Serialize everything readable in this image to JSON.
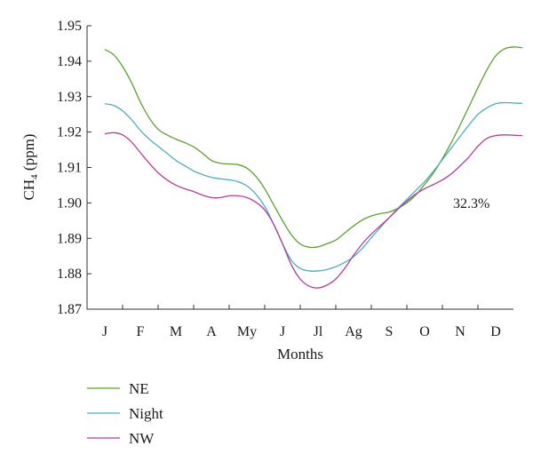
{
  "chart_data": {
    "type": "line",
    "title": "",
    "xlabel": "Months",
    "ylabel_main": "CH",
    "ylabel_sub": "4",
    "ylabel_unit": " (ppm)",
    "categories": [
      "J",
      "F",
      "M",
      "A",
      "My",
      "J",
      "Jl",
      "Ag",
      "S",
      "O",
      "N",
      "D"
    ],
    "ylim": [
      1.87,
      1.95
    ],
    "yticks": [
      "1.87",
      "1.88",
      "1.89",
      "1.90",
      "1.91",
      "1.92",
      "1.93",
      "1.94",
      "1.95"
    ],
    "grid": false,
    "legend_position": "bottom-left",
    "annotation": "32.3%",
    "series": [
      {
        "name": "NE",
        "color": "#5aa02c",
        "x": [
          0.5,
          0.75,
          1,
          1.25,
          1.5,
          1.75,
          2,
          2.25,
          2.5,
          2.75,
          3,
          3.25,
          3.5,
          3.75,
          4,
          4.25,
          4.5,
          4.75,
          5,
          5.25,
          5.5,
          5.75,
          6,
          6.25,
          6.5,
          6.75,
          7,
          7.25,
          7.5,
          7.75,
          8,
          8.25,
          8.5,
          8.75,
          9,
          9.25,
          9.5,
          9.75,
          10,
          10.25,
          10.5,
          10.75,
          11,
          11.25,
          11.5,
          11.75,
          12,
          12.25
        ],
        "values": [
          1.9433,
          1.9418,
          1.9385,
          1.934,
          1.9285,
          1.924,
          1.9208,
          1.9192,
          1.918,
          1.917,
          1.9158,
          1.914,
          1.912,
          1.9112,
          1.911,
          1.9108,
          1.9098,
          1.9075,
          1.904,
          1.8995,
          1.895,
          1.891,
          1.8884,
          1.8875,
          1.8876,
          1.8885,
          1.8895,
          1.8915,
          1.8935,
          1.8952,
          1.8963,
          1.897,
          1.8974,
          1.8985,
          1.9,
          1.9022,
          1.9052,
          1.9085,
          1.9125,
          1.917,
          1.922,
          1.9272,
          1.9325,
          1.9375,
          1.9415,
          1.9435,
          1.944,
          1.9438
        ]
      },
      {
        "name": "Night",
        "color": "#4bb0bd",
        "x": [
          0.5,
          0.75,
          1,
          1.25,
          1.5,
          1.75,
          2,
          2.25,
          2.5,
          2.75,
          3,
          3.25,
          3.5,
          3.75,
          4,
          4.25,
          4.5,
          4.75,
          5,
          5.25,
          5.5,
          5.75,
          6,
          6.25,
          6.5,
          6.75,
          7,
          7.25,
          7.5,
          7.75,
          8,
          8.25,
          8.5,
          8.75,
          9,
          9.25,
          9.5,
          9.75,
          10,
          10.25,
          10.5,
          10.75,
          11,
          11.25,
          11.5,
          11.75,
          12,
          12.25
        ],
        "values": [
          1.928,
          1.9275,
          1.926,
          1.9235,
          1.9205,
          1.918,
          1.916,
          1.914,
          1.912,
          1.9105,
          1.909,
          1.908,
          1.9072,
          1.9068,
          1.9065,
          1.906,
          1.9048,
          1.9025,
          1.899,
          1.894,
          1.8885,
          1.8838,
          1.8815,
          1.8808,
          1.8808,
          1.8812,
          1.882,
          1.8832,
          1.8848,
          1.8872,
          1.8902,
          1.893,
          1.8958,
          1.8985,
          1.901,
          1.9035,
          1.906,
          1.909,
          1.9122,
          1.9155,
          1.9188,
          1.922,
          1.925,
          1.9268,
          1.928,
          1.9283,
          1.9282,
          1.9281
        ]
      },
      {
        "name": "NW",
        "color": "#b23d9e",
        "x": [
          0.5,
          0.75,
          1,
          1.25,
          1.5,
          1.75,
          2,
          2.25,
          2.5,
          2.75,
          3,
          3.25,
          3.5,
          3.75,
          4,
          4.25,
          4.5,
          4.75,
          5,
          5.25,
          5.5,
          5.75,
          6,
          6.25,
          6.5,
          6.75,
          7,
          7.25,
          7.5,
          7.75,
          8,
          8.25,
          8.5,
          8.75,
          9,
          9.25,
          9.5,
          9.75,
          10,
          10.25,
          10.5,
          10.75,
          11,
          11.25,
          11.5,
          11.75,
          12,
          12.25
        ],
        "values": [
          1.9195,
          1.9198,
          1.9192,
          1.9172,
          1.9142,
          1.9112,
          1.9085,
          1.9065,
          1.905,
          1.904,
          1.9032,
          1.9022,
          1.9015,
          1.9015,
          1.902,
          1.902,
          1.9015,
          1.9002,
          1.898,
          1.894,
          1.8885,
          1.8825,
          1.8785,
          1.8765,
          1.876,
          1.8768,
          1.8785,
          1.8815,
          1.8852,
          1.8885,
          1.8912,
          1.8935,
          1.8958,
          1.8982,
          1.9005,
          1.9025,
          1.904,
          1.9052,
          1.9065,
          1.9082,
          1.9105,
          1.913,
          1.916,
          1.9182,
          1.919,
          1.9192,
          1.9191,
          1.919
        ]
      }
    ]
  }
}
